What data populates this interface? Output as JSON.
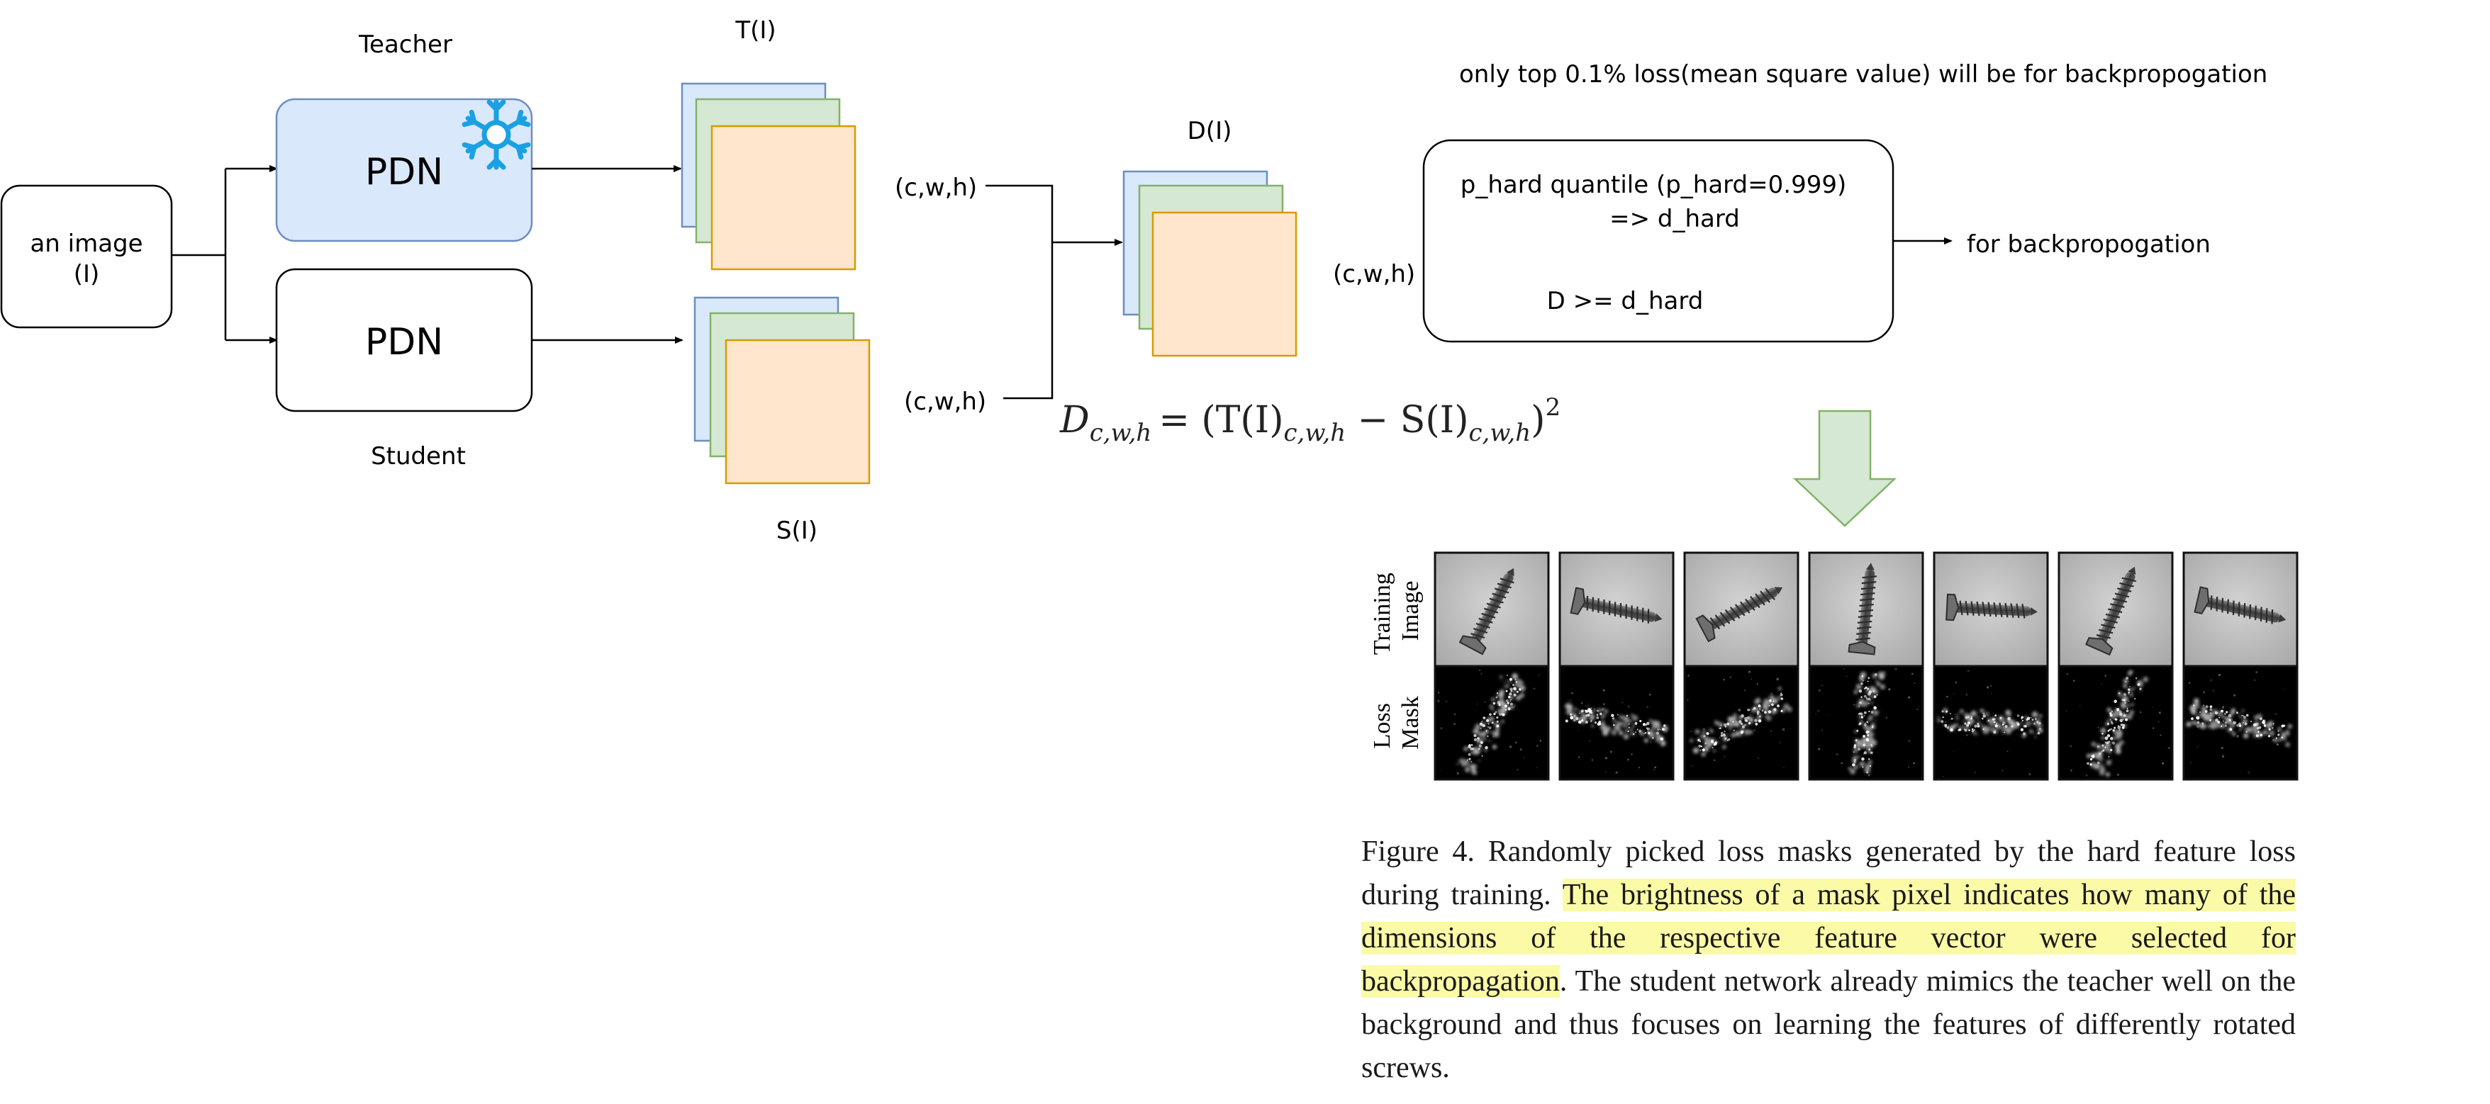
{
  "diagram": {
    "nodes": {
      "input_image": {
        "label_line1": "an image",
        "label_line2": "(I)"
      },
      "teacher_pdn": {
        "label": "PDN",
        "caption": "Teacher",
        "frozen_icon": "snowflake-icon"
      },
      "student_pdn": {
        "label": "PDN",
        "caption": "Student"
      },
      "teacher_output": {
        "label": "T(I)"
      },
      "student_output": {
        "label": "S(I)"
      },
      "difference": {
        "label": "D(I)"
      },
      "hard_loss_box": {
        "line1": "p_hard quantile (p_hard=0.999)",
        "line2": "=> d_hard",
        "line3": "D >= d_hard"
      }
    },
    "edge_labels": {
      "teacher_dims": "(c,w,h)",
      "student_dims": "(c,w,h)",
      "box_input_dims": "(c,w,h)"
    },
    "top_note": "only top 0.1% loss(mean square value) will be for backpropogation",
    "output_label": "for backpropogation",
    "formula": {
      "lhs": "D",
      "subscript": "c,w,h",
      "rhs_prefix": "= (T(I)",
      "rhs_mid": " − S(I)",
      "rhs_suffix": ")",
      "exponent": "2"
    },
    "colors": {
      "teacher_fill": "#dae8fc",
      "teacher_stroke": "#6c8ebf",
      "snowflake": "#1ba1e2",
      "layer_blue": "#dae8fc",
      "layer_green": "#d5e8d4",
      "layer_orange": "#ffe6cc",
      "layer_orange_stroke": "#d79b00",
      "arrow_fill": "#d5e8d4",
      "arrow_stroke": "#82b366"
    }
  },
  "figure": {
    "row_labels": {
      "training_line1": "Training",
      "training_line2": "Image",
      "loss_line1": "Loss",
      "loss_line2": "Mask"
    },
    "screw_angles": [
      -62,
      12,
      -28,
      -84,
      3,
      -66,
      13
    ],
    "caption": {
      "part1": "Figure 4.  Randomly picked loss masks generated by the hard feature loss during training. ",
      "highlighted": "The brightness of a mask pixel indicates how many of the dimensions of the respective feature vector were selected for backpropagation",
      "part2": ". The student network already mimics the teacher well on the background and thus focuses on learning the features of differently rotated screws."
    }
  }
}
